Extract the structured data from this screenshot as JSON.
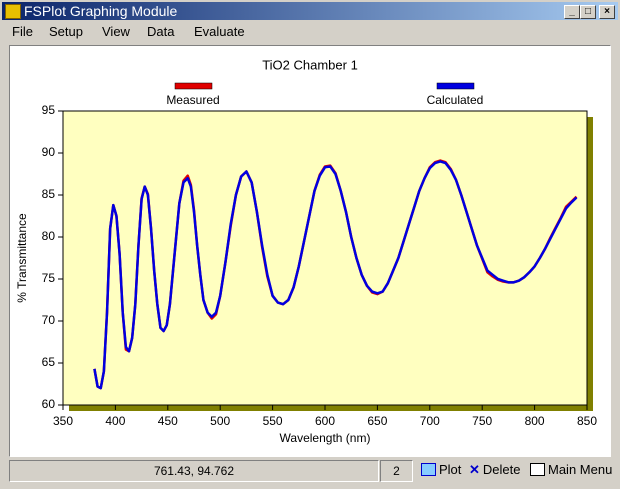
{
  "window": {
    "title": "FSPlot Graphing Module"
  },
  "menu": [
    "File",
    "Setup",
    "View",
    "Data",
    "Evaluate"
  ],
  "status": {
    "coords": "761.43, 94.762",
    "count": "2",
    "buttons": [
      "Plot",
      "Delete",
      "Main Menu"
    ]
  },
  "chart_data": {
    "type": "line",
    "title": "TiO2 Chamber 1",
    "x_label": "Wavelength (nm)",
    "y_label": "% Transmittance",
    "xlim": [
      350,
      850
    ],
    "xticks": [
      350,
      400,
      450,
      500,
      550,
      600,
      650,
      700,
      750,
      800,
      850
    ],
    "ylim": [
      60,
      95
    ],
    "yticks": [
      60,
      65,
      70,
      75,
      80,
      85,
      90,
      95
    ],
    "x": [
      380,
      383,
      386,
      389,
      392,
      395,
      398,
      401,
      404,
      407,
      410,
      413,
      416,
      419,
      422,
      425,
      428,
      431,
      434,
      437,
      440,
      443,
      446,
      449,
      452,
      455,
      458,
      461,
      465,
      469,
      472,
      475,
      478,
      481,
      484,
      488,
      492,
      496,
      500,
      505,
      510,
      515,
      520,
      525,
      530,
      535,
      540,
      545,
      550,
      555,
      560,
      565,
      570,
      575,
      580,
      585,
      590,
      595,
      600,
      605,
      610,
      615,
      620,
      625,
      630,
      635,
      640,
      645,
      650,
      655,
      660,
      665,
      670,
      675,
      680,
      685,
      690,
      695,
      700,
      705,
      710,
      715,
      720,
      725,
      730,
      735,
      740,
      745,
      750,
      755,
      760,
      765,
      770,
      775,
      780,
      785,
      790,
      795,
      800,
      805,
      810,
      815,
      820,
      825,
      830,
      835,
      840
    ],
    "series": [
      {
        "name": "Measured",
        "color": "#e00000",
        "values": [
          64.3,
          62.2,
          62,
          64,
          71,
          81,
          83.8,
          82.5,
          78,
          71,
          66.6,
          66.4,
          68,
          72,
          79,
          84.6,
          86,
          85.1,
          81,
          76,
          72,
          69.2,
          68.8,
          69.5,
          72,
          76,
          80,
          84,
          86.7,
          87.3,
          86.2,
          83.2,
          79,
          75.5,
          72.5,
          71,
          70.3,
          70.8,
          73,
          77,
          81.3,
          85,
          87.2,
          87.8,
          86.5,
          83,
          78.8,
          75.3,
          73,
          72.2,
          72,
          72.5,
          74,
          76.5,
          79.5,
          82.5,
          85.5,
          87.4,
          88.4,
          88.5,
          87.6,
          85.5,
          83,
          80,
          77.5,
          75.5,
          74.2,
          73.4,
          73.2,
          73.5,
          74.5,
          76,
          77.5,
          79.5,
          81.5,
          83.5,
          85.5,
          87,
          88.3,
          88.9,
          89.1,
          88.9,
          88.1,
          86.8,
          85,
          83,
          81,
          79,
          77.4,
          75.8,
          75.3,
          74.9,
          74.7,
          74.6,
          74.6,
          74.8,
          75.2,
          75.8,
          76.5,
          77.5,
          78.6,
          79.9,
          81.1,
          82.3,
          83.6,
          84.2,
          84.8
        ]
      },
      {
        "name": "Calculated",
        "color": "#0000e0",
        "values": [
          64.3,
          62.2,
          62,
          64,
          71,
          81,
          83.8,
          82.5,
          78,
          71,
          66.9,
          66.4,
          68,
          72,
          79,
          84.5,
          86,
          85,
          81,
          76,
          72,
          69.2,
          68.8,
          69.5,
          72,
          76,
          80,
          84,
          86.5,
          87,
          86,
          83,
          79,
          75.5,
          72.5,
          71,
          70.5,
          71,
          73,
          77,
          81.5,
          85,
          87.2,
          87.8,
          86.5,
          83,
          79,
          75.5,
          73,
          72.2,
          72,
          72.5,
          74,
          76.5,
          79.5,
          82.5,
          85.5,
          87.3,
          88.3,
          88.4,
          87.5,
          85.5,
          83,
          80,
          77.5,
          75.5,
          74.2,
          73.5,
          73.3,
          73.5,
          74.5,
          76,
          77.5,
          79.5,
          81.5,
          83.5,
          85.5,
          87,
          88.2,
          88.8,
          89,
          88.8,
          88,
          86.8,
          85,
          83,
          81,
          79,
          77.5,
          76,
          75.5,
          75,
          74.8,
          74.6,
          74.6,
          74.8,
          75.2,
          75.8,
          76.5,
          77.5,
          78.6,
          79.8,
          81,
          82.2,
          83.4,
          84.1,
          84.7
        ]
      }
    ]
  }
}
